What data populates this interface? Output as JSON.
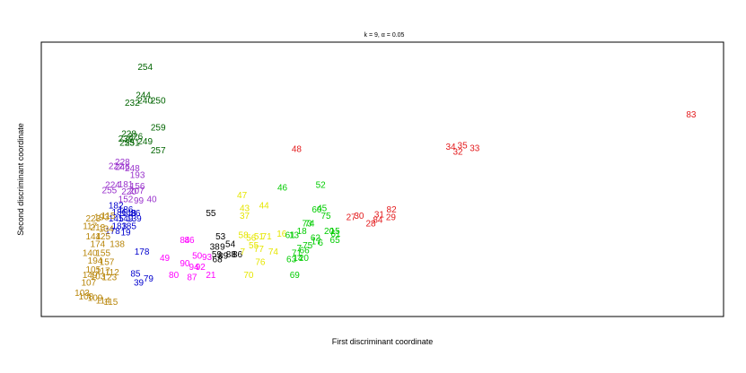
{
  "chart_data": {
    "type": "scatter",
    "title": "k = 9, α = 0.05",
    "xlabel": "First discriminant coordinate",
    "ylabel": "Second discriminant coordinate",
    "xlim": [
      0,
      100
    ],
    "ylim": [
      0,
      100
    ],
    "grid": false,
    "axis_ticks": false,
    "series": [
      {
        "color": "#006400",
        "points": [
          {
            "x": 13.5,
            "y": 94,
            "label": "254"
          },
          {
            "x": 13.2,
            "y": 83,
            "label": "244"
          },
          {
            "x": 11.5,
            "y": 80,
            "label": "232"
          },
          {
            "x": 13.5,
            "y": 81,
            "label": "240"
          },
          {
            "x": 15.5,
            "y": 81,
            "label": "250"
          },
          {
            "x": 15.5,
            "y": 70.5,
            "label": "259"
          },
          {
            "x": 11,
            "y": 68,
            "label": "228"
          },
          {
            "x": 10.5,
            "y": 66,
            "label": "239"
          },
          {
            "x": 12,
            "y": 67,
            "label": "226"
          },
          {
            "x": 13.5,
            "y": 65,
            "label": "249"
          },
          {
            "x": 10.7,
            "y": 64.5,
            "label": "253"
          },
          {
            "x": 11.5,
            "y": 64.5,
            "label": "251"
          },
          {
            "x": 15.5,
            "y": 61.5,
            "label": "257"
          }
        ]
      },
      {
        "color": "#9932CC",
        "points": [
          {
            "x": 10,
            "y": 57,
            "label": "228"
          },
          {
            "x": 9,
            "y": 55.5,
            "label": "222"
          },
          {
            "x": 10,
            "y": 55,
            "label": "246"
          },
          {
            "x": 11.5,
            "y": 54.5,
            "label": "248"
          },
          {
            "x": 12.3,
            "y": 52,
            "label": "193"
          },
          {
            "x": 8.5,
            "y": 48,
            "label": "224"
          },
          {
            "x": 10.5,
            "y": 48.3,
            "label": "181"
          },
          {
            "x": 12.3,
            "y": 47.5,
            "label": "156"
          },
          {
            "x": 8,
            "y": 46,
            "label": "255"
          },
          {
            "x": 11,
            "y": 45.5,
            "label": "220"
          },
          {
            "x": 12.2,
            "y": 45.8,
            "label": "207"
          },
          {
            "x": 10.5,
            "y": 42.5,
            "label": "152"
          },
          {
            "x": 12.5,
            "y": 42,
            "label": "99"
          },
          {
            "x": 14.5,
            "y": 42.5,
            "label": "40"
          }
        ]
      },
      {
        "color": "#0000CD",
        "points": [
          {
            "x": 9,
            "y": 40,
            "label": "182"
          },
          {
            "x": 10.5,
            "y": 38.5,
            "label": "186"
          },
          {
            "x": 9.5,
            "y": 37.5,
            "label": "186"
          },
          {
            "x": 11,
            "y": 37,
            "label": "148"
          },
          {
            "x": 12,
            "y": 37,
            "label": "86"
          },
          {
            "x": 9,
            "y": 35,
            "label": "145"
          },
          {
            "x": 10.5,
            "y": 35,
            "label": "149"
          },
          {
            "x": 11.8,
            "y": 35,
            "label": "139"
          },
          {
            "x": 9.5,
            "y": 32,
            "label": "183"
          },
          {
            "x": 11,
            "y": 32,
            "label": "185"
          },
          {
            "x": 8.5,
            "y": 30,
            "label": "178"
          },
          {
            "x": 10.5,
            "y": 29.5,
            "label": "19"
          },
          {
            "x": 13,
            "y": 22,
            "label": "178"
          },
          {
            "x": 12,
            "y": 13.5,
            "label": "85"
          },
          {
            "x": 14,
            "y": 11.5,
            "label": "79"
          },
          {
            "x": 12.5,
            "y": 10,
            "label": "39"
          }
        ]
      },
      {
        "color": "#B8860B",
        "points": [
          {
            "x": 5.5,
            "y": 35,
            "label": "223"
          },
          {
            "x": 6.8,
            "y": 35.5,
            "label": "193"
          },
          {
            "x": 7.8,
            "y": 36,
            "label": "115"
          },
          {
            "x": 5,
            "y": 32,
            "label": "117"
          },
          {
            "x": 6.2,
            "y": 31.5,
            "label": "213"
          },
          {
            "x": 7.5,
            "y": 31,
            "label": "134"
          },
          {
            "x": 5.5,
            "y": 28,
            "label": "144"
          },
          {
            "x": 7,
            "y": 28,
            "label": "125"
          },
          {
            "x": 6.2,
            "y": 25,
            "label": "174"
          },
          {
            "x": 9.2,
            "y": 25,
            "label": "138"
          },
          {
            "x": 5,
            "y": 21.5,
            "label": "140"
          },
          {
            "x": 7,
            "y": 21.5,
            "label": "155"
          },
          {
            "x": 5.8,
            "y": 18.5,
            "label": "194"
          },
          {
            "x": 7.6,
            "y": 18,
            "label": "157"
          },
          {
            "x": 5.5,
            "y": 15,
            "label": "105"
          },
          {
            "x": 7,
            "y": 14.5,
            "label": "117"
          },
          {
            "x": 8.4,
            "y": 14,
            "label": "112"
          },
          {
            "x": 5,
            "y": 13,
            "label": "149"
          },
          {
            "x": 6.2,
            "y": 12.5,
            "label": "103"
          },
          {
            "x": 8,
            "y": 12,
            "label": "123"
          },
          {
            "x": 4.8,
            "y": 10,
            "label": "107"
          },
          {
            "x": 3.8,
            "y": 6,
            "label": "103"
          },
          {
            "x": 4.4,
            "y": 4.5,
            "label": "108"
          },
          {
            "x": 5.8,
            "y": 4,
            "label": "109"
          },
          {
            "x": 7,
            "y": 3,
            "label": "114"
          },
          {
            "x": 8.2,
            "y": 2.5,
            "label": "115"
          }
        ]
      },
      {
        "color": "#FF00FF",
        "points": [
          {
            "x": 19.6,
            "y": 26.5,
            "label": "84"
          },
          {
            "x": 20.3,
            "y": 26.5,
            "label": "86"
          },
          {
            "x": 16.5,
            "y": 19.5,
            "label": "49"
          },
          {
            "x": 21.5,
            "y": 20.5,
            "label": "50"
          },
          {
            "x": 19.6,
            "y": 17.5,
            "label": "90"
          },
          {
            "x": 21,
            "y": 16,
            "label": "94"
          },
          {
            "x": 22,
            "y": 16,
            "label": "92"
          },
          {
            "x": 23,
            "y": 20,
            "label": "93"
          },
          {
            "x": 17.9,
            "y": 13,
            "label": "80"
          },
          {
            "x": 20.7,
            "y": 12,
            "label": "87"
          },
          {
            "x": 23.6,
            "y": 13,
            "label": "21"
          }
        ]
      },
      {
        "color": "#000000",
        "points": [
          {
            "x": 23.6,
            "y": 37,
            "label": "55"
          },
          {
            "x": 25.1,
            "y": 28,
            "label": "53"
          },
          {
            "x": 24.2,
            "y": 24,
            "label": "38"
          },
          {
            "x": 25.4,
            "y": 24,
            "label": "9"
          },
          {
            "x": 26.6,
            "y": 25,
            "label": "54"
          },
          {
            "x": 24.5,
            "y": 21,
            "label": "59"
          },
          {
            "x": 25.5,
            "y": 20.5,
            "label": "89"
          },
          {
            "x": 26.7,
            "y": 21,
            "label": "88"
          },
          {
            "x": 27.7,
            "y": 21,
            "label": "86"
          },
          {
            "x": 24.6,
            "y": 19,
            "label": "68"
          }
        ]
      },
      {
        "color": "#E6E600",
        "points": [
          {
            "x": 28.4,
            "y": 44,
            "label": "47"
          },
          {
            "x": 31.8,
            "y": 40,
            "label": "44"
          },
          {
            "x": 28.8,
            "y": 39,
            "label": "43"
          },
          {
            "x": 28.8,
            "y": 36,
            "label": "37"
          },
          {
            "x": 28.6,
            "y": 28.5,
            "label": "58"
          },
          {
            "x": 29.8,
            "y": 27.5,
            "label": "56"
          },
          {
            "x": 31,
            "y": 28,
            "label": "51"
          },
          {
            "x": 32.2,
            "y": 28,
            "label": "71"
          },
          {
            "x": 34.5,
            "y": 29,
            "label": "16"
          },
          {
            "x": 30.2,
            "y": 24.5,
            "label": "55"
          },
          {
            "x": 31,
            "y": 23,
            "label": "77"
          },
          {
            "x": 28.5,
            "y": 22,
            "label": "7"
          },
          {
            "x": 33.2,
            "y": 22,
            "label": "74"
          },
          {
            "x": 31.2,
            "y": 18,
            "label": "76"
          },
          {
            "x": 29.4,
            "y": 13,
            "label": "70"
          }
        ]
      },
      {
        "color": "#00CC00",
        "points": [
          {
            "x": 40.5,
            "y": 48,
            "label": "52"
          },
          {
            "x": 34.6,
            "y": 47,
            "label": "46"
          },
          {
            "x": 40.7,
            "y": 39,
            "label": "45"
          },
          {
            "x": 39.9,
            "y": 38.5,
            "label": "60"
          },
          {
            "x": 41.3,
            "y": 36,
            "label": "75"
          },
          {
            "x": 38.4,
            "y": 33,
            "label": "73"
          },
          {
            "x": 38.8,
            "y": 33,
            "label": "74"
          },
          {
            "x": 37.6,
            "y": 30,
            "label": "18"
          },
          {
            "x": 41.8,
            "y": 30,
            "label": "20"
          },
          {
            "x": 42.7,
            "y": 30,
            "label": "15"
          },
          {
            "x": 42.8,
            "y": 29,
            "label": "61"
          },
          {
            "x": 35.8,
            "y": 28.5,
            "label": "61"
          },
          {
            "x": 36.4,
            "y": 28.5,
            "label": "13"
          },
          {
            "x": 39.7,
            "y": 27.5,
            "label": "62"
          },
          {
            "x": 42.7,
            "y": 26.5,
            "label": "65"
          },
          {
            "x": 38.5,
            "y": 24.5,
            "label": "75"
          },
          {
            "x": 37.2,
            "y": 23.5,
            "label": "7"
          },
          {
            "x": 39.8,
            "y": 26,
            "label": "17"
          },
          {
            "x": 40.5,
            "y": 25.5,
            "label": "6"
          },
          {
            "x": 38,
            "y": 22.5,
            "label": "66"
          },
          {
            "x": 36.8,
            "y": 21.5,
            "label": "71"
          },
          {
            "x": 36,
            "y": 19,
            "label": "63"
          },
          {
            "x": 37,
            "y": 19.5,
            "label": "14"
          },
          {
            "x": 37.9,
            "y": 19.5,
            "label": "20"
          },
          {
            "x": 36.5,
            "y": 13,
            "label": "69"
          }
        ]
      },
      {
        "color": "#E31A1C",
        "points": [
          {
            "x": 36.8,
            "y": 62,
            "label": "48"
          },
          {
            "x": 60.5,
            "y": 63,
            "label": "34"
          },
          {
            "x": 62.3,
            "y": 63.5,
            "label": "35"
          },
          {
            "x": 64.2,
            "y": 62.5,
            "label": "33"
          },
          {
            "x": 61.6,
            "y": 61,
            "label": "32"
          },
          {
            "x": 97.5,
            "y": 75.5,
            "label": "83"
          },
          {
            "x": 51.4,
            "y": 38.5,
            "label": "82"
          },
          {
            "x": 49.5,
            "y": 36.5,
            "label": "31"
          },
          {
            "x": 46.4,
            "y": 36,
            "label": "30"
          },
          {
            "x": 45.2,
            "y": 35.5,
            "label": "27"
          },
          {
            "x": 51.3,
            "y": 35.5,
            "label": "29"
          },
          {
            "x": 49.3,
            "y": 34.5,
            "label": "84"
          },
          {
            "x": 48.2,
            "y": 33,
            "label": "28"
          }
        ]
      }
    ]
  }
}
